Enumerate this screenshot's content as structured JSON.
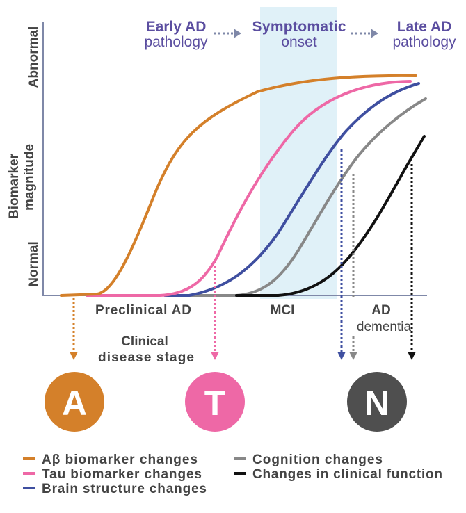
{
  "header": {
    "stage1": {
      "line1": "Early AD",
      "line2": "pathology"
    },
    "stage2": {
      "line1": "Symptomatic",
      "line2": "onset"
    },
    "stage3": {
      "line1": "Late AD",
      "line2": "pathology"
    }
  },
  "y_axis": {
    "title_line1": "Biomarker",
    "title_line2": "magnitude",
    "high_label": "Abnormal",
    "low_label": "Normal"
  },
  "x_axis": {
    "stages": [
      "Preclinical AD",
      "MCI",
      "AD",
      "dementia"
    ],
    "title_line1": "Clinical",
    "title_line2": "disease stage"
  },
  "badges": [
    {
      "letter": "A",
      "color": "#D4802A"
    },
    {
      "letter": "T",
      "color": "#EE68A6"
    },
    {
      "letter": "N",
      "color": "#4F4F4F"
    }
  ],
  "legend": [
    {
      "label": "Aβ biomarker changes",
      "color": "#D4802A"
    },
    {
      "label": "Tau biomarker changes",
      "color": "#EE68A6"
    },
    {
      "label": "Brain structure changes",
      "color": "#3F4FA0"
    },
    {
      "label": "Cognition changes",
      "color": "#888888"
    },
    {
      "label": "Changes in clinical function",
      "color": "#111111"
    }
  ],
  "colors": {
    "symptomatic_band": "#E0F1F8",
    "axis": "#7F88A8",
    "header_text": "#5B4EA0"
  }
}
